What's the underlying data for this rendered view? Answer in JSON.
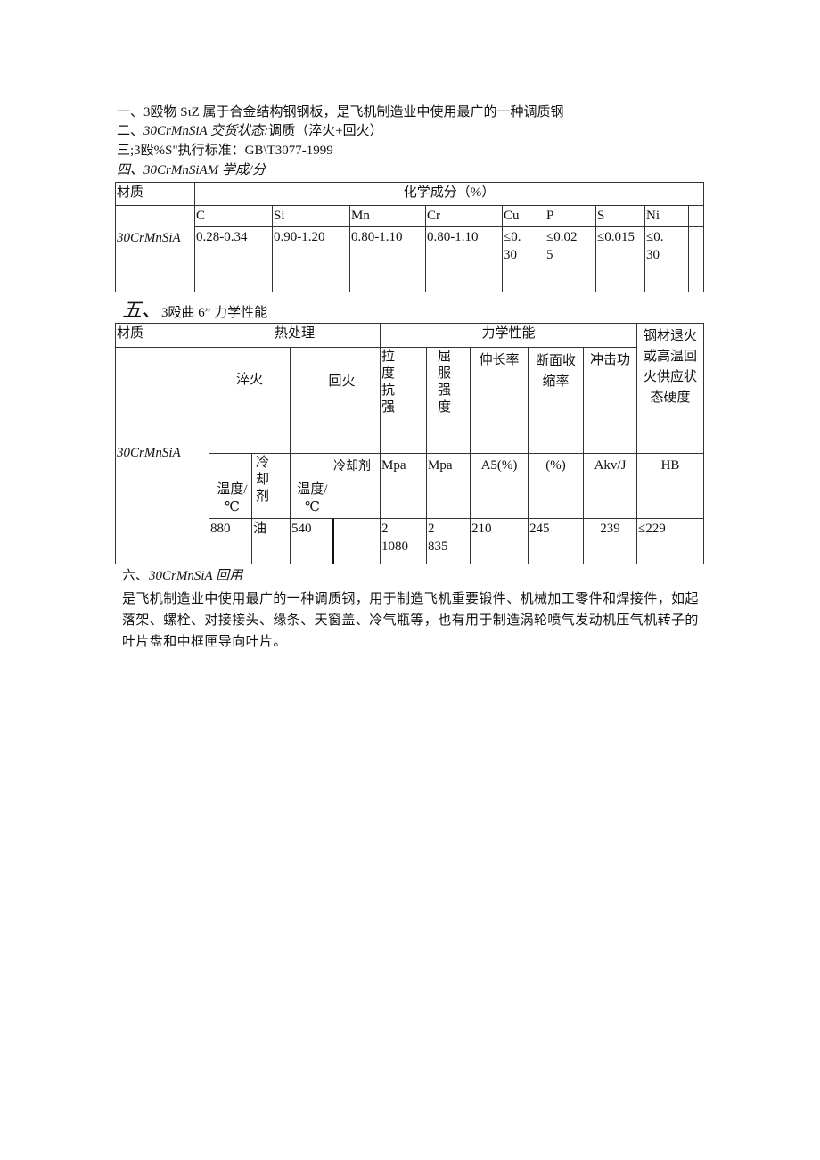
{
  "lines": {
    "l1": "一、3殴物 SιZ 属于合金结构钢钢板，是飞机制造业中使用最广的一种调质钢",
    "l2a": "二、",
    "l2b": "30CrMnSiA 交货状态:",
    "l2c": "调质（淬火+回火）",
    "l3": "三;3殴%S\"执行标准：GB\\T3077-1999",
    "l4": "四、30CrMnSiAM 学成/分",
    "l5a": "五、",
    "l5b": "3殴曲 6” 力学性能",
    "l6a": "六、",
    "l6b": "30CrMnSiA 回用"
  },
  "table1": {
    "material_header": "材质",
    "composition_header": "化学成分（%）",
    "material": "30CrMnSiA",
    "elements": [
      "C",
      "Si",
      "Mn",
      "Cr",
      "Cu",
      "P",
      "S",
      "Ni"
    ],
    "values": [
      "0.28-0.34",
      "0.90-1.20",
      "0.80-1.10",
      "0.80-1.10",
      "≤0.30",
      "≤0.025",
      "≤0.015",
      "≤0.30"
    ]
  },
  "table2": {
    "material_header": "材质",
    "heat_header": "热处理",
    "mech_header": "力学性能",
    "hardness_header": "钢材退火或高温回火供应状态硬度",
    "quench": "淬火",
    "temper": "回火",
    "tensile": "拉度抗强",
    "yield": "屈服强度",
    "elongation": "伸长率",
    "reduction": "断面收缩率",
    "impact": "冲击功",
    "material": "30CrMnSiA",
    "temp1": "温度/℃",
    "coolant1": "冷却剂",
    "temp2": "温度/℃",
    "coolant2": "冷却剂",
    "u_tensile": "Mpa",
    "u_yield": "Mpa",
    "u_elong": "A5(%)",
    "u_reduct": "(%)",
    "u_impact": "Akv/J",
    "u_hb": "HB",
    "v_temp1": "880",
    "v_cool1": "油",
    "v_temp2": "540",
    "v_cool2": "",
    "v_tensile": "2 1080",
    "v_yield": "2 835",
    "v_elong": "210",
    "v_reduct": "245",
    "v_impact": "239",
    "v_hb": "≤229"
  },
  "application": "是飞机制造业中使用最广的一种调质钢，用于制造飞机重要锻件、机械加工零件和焊接件，如起落架、螺栓、对接接头、缘条、天窗盖、冷气瓶等，也有用于制造涡轮喷气发动机压气机转子的叶片盘和中框匣导向叶片。"
}
